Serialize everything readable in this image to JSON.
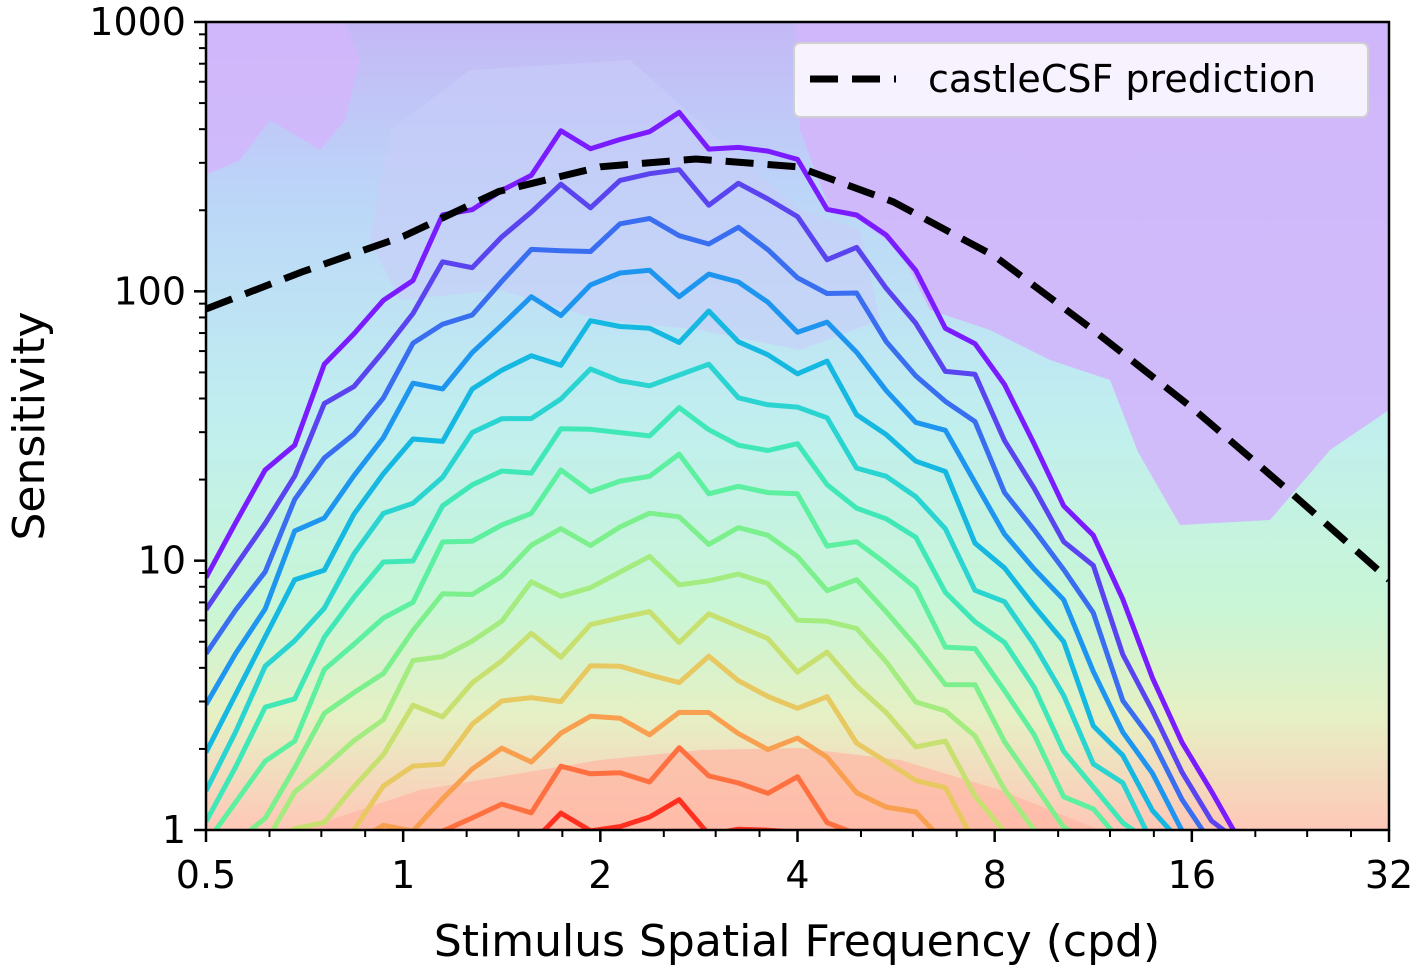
{
  "chart_data": {
    "type": "contour",
    "xlabel": "Stimulus Spatial Frequency (cpd)",
    "ylabel": "Sensitivity",
    "x_scale": "log2",
    "y_scale": "log10",
    "xlim": [
      0.5,
      32
    ],
    "ylim": [
      1,
      1000
    ],
    "x_ticks": [
      0.5,
      1,
      2,
      4,
      8,
      16,
      32
    ],
    "x_tick_labels": [
      "0.5",
      "1",
      "2",
      "4",
      "8",
      "16",
      "32"
    ],
    "y_ticks": [
      1,
      10,
      100,
      1000
    ],
    "y_tick_labels": [
      "1",
      "10",
      "100",
      "1000"
    ],
    "grid": false,
    "legend": {
      "placement": "top-right",
      "entries": [
        {
          "label": "castleCSF prediction",
          "style": "dashed",
          "color": "#000000"
        }
      ]
    },
    "series": [
      {
        "name": "castleCSF prediction",
        "style": "dashed",
        "color": "#000000",
        "x": [
          0.5,
          0.7,
          1.0,
          1.4,
          2.0,
          2.8,
          4.0,
          5.6,
          8.0,
          11.3,
          16.0,
          22.6,
          32.0
        ],
        "y": [
          86,
          118,
          160,
          235,
          290,
          310,
          290,
          215,
          135,
          72,
          37,
          18,
          8.5
        ]
      }
    ],
    "contour_colors": [
      "#7a1cff",
      "#5a44f0",
      "#3a6ef0",
      "#1e96f0",
      "#14b8e0",
      "#2ad4d0",
      "#40e8b8",
      "#5cf0a0",
      "#7cf08c",
      "#a4ec80",
      "#c8e070",
      "#e8c860",
      "#f8a050",
      "#ff7040",
      "#ff3020"
    ]
  }
}
